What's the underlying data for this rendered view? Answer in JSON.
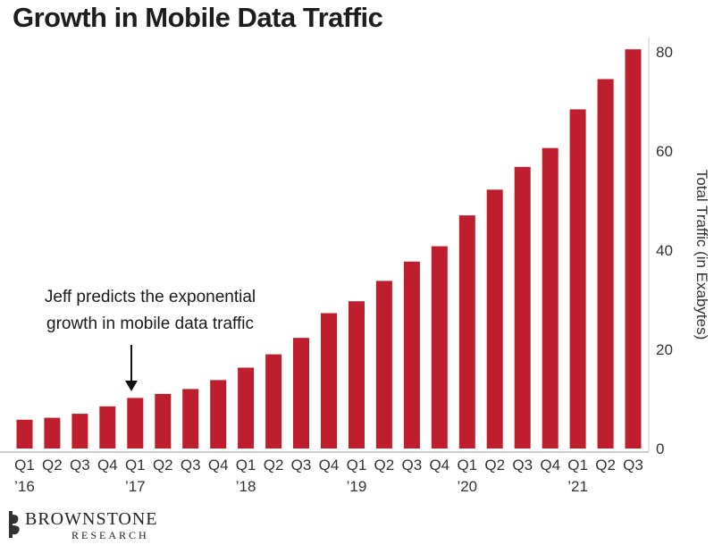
{
  "chart_data": {
    "type": "bar",
    "title": "Growth in Mobile Data Traffic",
    "ylabel": "Total Traffic (in Exabytes)",
    "xlabel": "",
    "ylim": [
      0,
      80
    ],
    "yticks": [
      0,
      20,
      40,
      60,
      80
    ],
    "y_axis_side": "right",
    "grid": false,
    "bar_color": "#be1e2d",
    "categories": [
      {
        "q": "Q1",
        "y": "'16"
      },
      {
        "q": "Q2",
        "y": ""
      },
      {
        "q": "Q3",
        "y": ""
      },
      {
        "q": "Q4",
        "y": ""
      },
      {
        "q": "Q1",
        "y": "'17"
      },
      {
        "q": "Q2",
        "y": ""
      },
      {
        "q": "Q3",
        "y": ""
      },
      {
        "q": "Q4",
        "y": ""
      },
      {
        "q": "Q1",
        "y": "'18"
      },
      {
        "q": "Q2",
        "y": ""
      },
      {
        "q": "Q3",
        "y": ""
      },
      {
        "q": "Q4",
        "y": ""
      },
      {
        "q": "Q1",
        "y": "'19"
      },
      {
        "q": "Q2",
        "y": ""
      },
      {
        "q": "Q3",
        "y": ""
      },
      {
        "q": "Q4",
        "y": ""
      },
      {
        "q": "Q1",
        "y": "'20"
      },
      {
        "q": "Q2",
        "y": ""
      },
      {
        "q": "Q3",
        "y": ""
      },
      {
        "q": "Q4",
        "y": ""
      },
      {
        "q": "Q1",
        "y": "'21"
      },
      {
        "q": "Q2",
        "y": ""
      },
      {
        "q": "Q3",
        "y": ""
      }
    ],
    "values": [
      5.8,
      6.2,
      7.0,
      8.5,
      10.2,
      11.0,
      12.0,
      13.8,
      16.3,
      19.0,
      22.3,
      27.3,
      29.7,
      33.8,
      37.7,
      40.8,
      47.0,
      52.2,
      56.8,
      60.6,
      68.4,
      74.5,
      80.5
    ],
    "annotation": {
      "lines": [
        "Jeff predicts the exponential",
        "growth in mobile data traffic"
      ],
      "target_index": 4
    }
  },
  "branding": {
    "name": "BROWNSTONE",
    "sub": "RESEARCH"
  }
}
